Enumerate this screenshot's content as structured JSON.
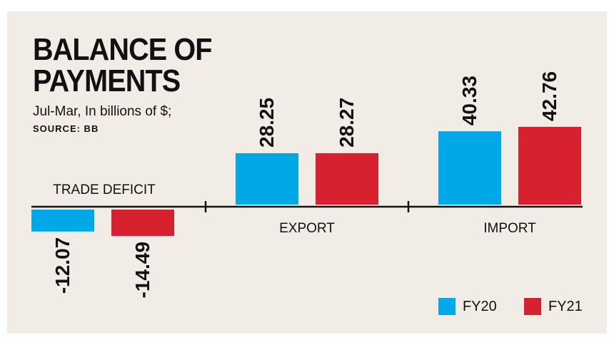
{
  "title_line1": "BALANCE OF",
  "title_line2": "PAYMENTS",
  "subtitle": "Jul-Mar, In billions of $;",
  "source": "SOURCE: BB",
  "colors": {
    "fy20": "#00a8e8",
    "fy21": "#d7212e",
    "background": "#f1ede6",
    "axis": "#111111"
  },
  "chart_data": {
    "type": "bar",
    "categories": [
      "TRADE DEFICIT",
      "EXPORT",
      "IMPORT"
    ],
    "series": [
      {
        "name": "FY20",
        "values": [
          -12.07,
          28.25,
          40.33
        ]
      },
      {
        "name": "FY21",
        "values": [
          -14.49,
          28.27,
          42.76
        ]
      }
    ],
    "value_labels": [
      [
        "-12.07",
        "28.25",
        "40.33"
      ],
      [
        "-14.49",
        "28.27",
        "42.76"
      ]
    ],
    "legend": [
      "FY20",
      "FY21"
    ],
    "legend_position": "bottom-right",
    "grid": false
  }
}
